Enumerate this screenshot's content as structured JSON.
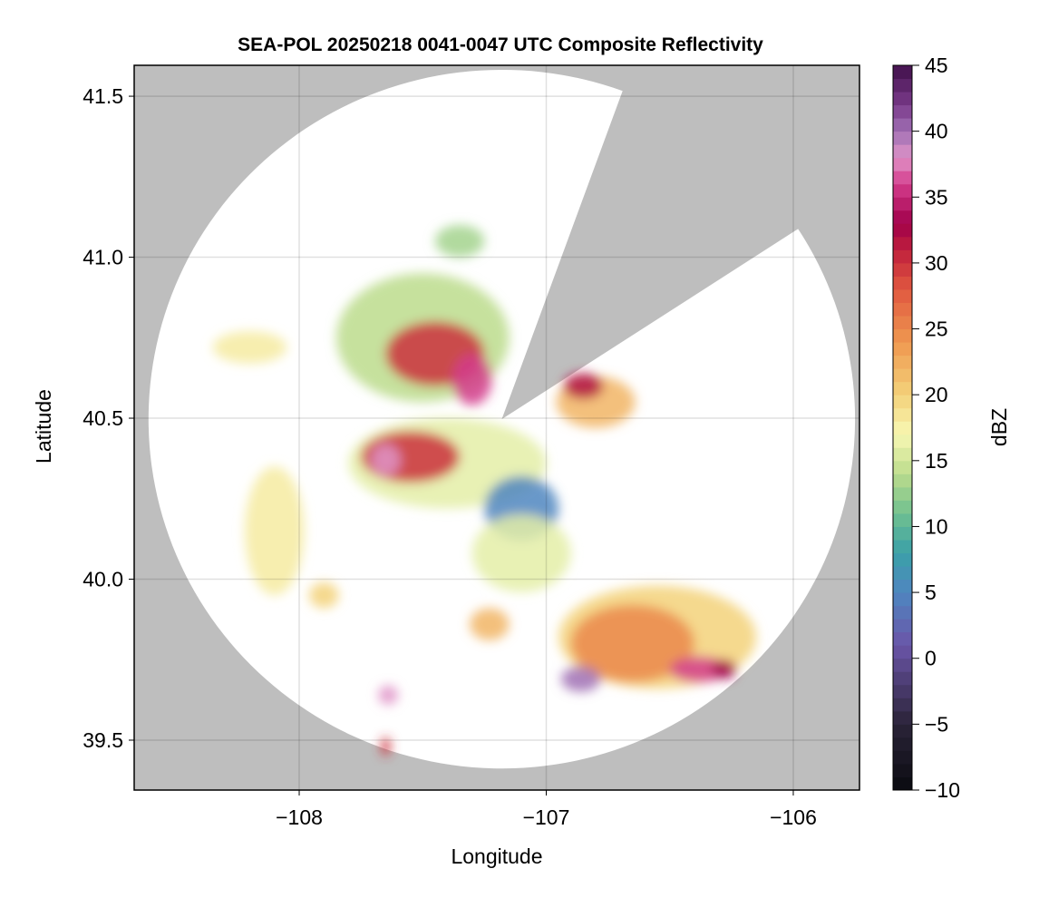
{
  "chart_data": {
    "type": "heatmap",
    "title": "SEA-POL 20250218 0041-0047 UTC Composite Reflectivity",
    "xlabel": "Longitude",
    "ylabel": "Latitude",
    "xlim": [
      -108.668,
      -105.732
    ],
    "ylim": [
      39.345,
      41.596
    ],
    "xticks": [
      -108,
      -107,
      -106
    ],
    "xtick_labels": [
      "−108",
      "−107",
      "−106"
    ],
    "yticks": [
      39.5,
      40.0,
      40.5,
      41.0,
      41.5
    ],
    "ytick_labels": [
      "39.5",
      "40.0",
      "40.5",
      "41.0",
      "41.5"
    ],
    "grid": true,
    "background_color": "#bebebe",
    "radar": {
      "lon": -107.18,
      "lat": 40.497,
      "range_deg_lon": 1.43,
      "range_deg_lat": 1.085,
      "blocked_sector_deg": [
        20,
        57
      ]
    },
    "colorbar": {
      "label": "dBZ",
      "min": -10,
      "max": 45,
      "step": 1,
      "ticks": [
        -10,
        -5,
        0,
        5,
        10,
        15,
        20,
        25,
        30,
        35,
        40,
        45
      ],
      "tick_labels": [
        "−10",
        "−5",
        "0",
        "5",
        "10",
        "15",
        "20",
        "25",
        "30",
        "35",
        "40",
        "45"
      ],
      "colormap": [
        "#0a0a10",
        "#2a2338",
        "#4b3c70",
        "#6a55a8",
        "#4f86c0",
        "#3aa0a8",
        "#70c090",
        "#bcdc8c",
        "#f8f8b4",
        "#f3d27a",
        "#ef9850",
        "#e05840",
        "#c0203c",
        "#a0004a",
        "#d43c8c",
        "#e094c8",
        "#a070b4",
        "#7a3a8a",
        "#40104a"
      ],
      "colormap_values": [
        -10,
        -5,
        -2,
        1,
        5,
        8,
        11,
        14,
        17,
        20,
        24,
        28,
        31,
        33,
        36,
        38,
        40,
        42,
        45
      ]
    },
    "echo_regions": [
      {
        "lon": -107.5,
        "lat": 40.75,
        "dlon": 0.35,
        "dlat": 0.2,
        "dbz": 14
      },
      {
        "lon": -107.45,
        "lat": 40.7,
        "dlon": 0.2,
        "dlat": 0.1,
        "dbz": 30
      },
      {
        "lon": -107.3,
        "lat": 40.62,
        "dlon": 0.08,
        "dlat": 0.08,
        "dbz": 36
      },
      {
        "lon": -107.4,
        "lat": 40.36,
        "dlon": 0.4,
        "dlat": 0.14,
        "dbz": 16
      },
      {
        "lon": -107.55,
        "lat": 40.38,
        "dlon": 0.2,
        "dlat": 0.08,
        "dbz": 30
      },
      {
        "lon": -107.65,
        "lat": 40.37,
        "dlon": 0.06,
        "dlat": 0.05,
        "dbz": 38
      },
      {
        "lon": -107.1,
        "lat": 40.22,
        "dlon": 0.15,
        "dlat": 0.1,
        "dbz": 5
      },
      {
        "lon": -107.1,
        "lat": 40.08,
        "dlon": 0.2,
        "dlat": 0.12,
        "dbz": 16
      },
      {
        "lon": -106.8,
        "lat": 40.55,
        "dlon": 0.16,
        "dlat": 0.08,
        "dbz": 22
      },
      {
        "lon": -106.85,
        "lat": 40.6,
        "dlon": 0.08,
        "dlat": 0.04,
        "dbz": 32
      },
      {
        "lon": -106.55,
        "lat": 39.82,
        "dlon": 0.4,
        "dlat": 0.16,
        "dbz": 20
      },
      {
        "lon": -106.65,
        "lat": 39.8,
        "dlon": 0.25,
        "dlat": 0.12,
        "dbz": 25
      },
      {
        "lon": -106.86,
        "lat": 39.69,
        "dlon": 0.08,
        "dlat": 0.04,
        "dbz": 40
      },
      {
        "lon": -106.38,
        "lat": 39.72,
        "dlon": 0.12,
        "dlat": 0.04,
        "dbz": 36
      },
      {
        "lon": -106.28,
        "lat": 39.72,
        "dlon": 0.05,
        "dlat": 0.03,
        "dbz": 33
      },
      {
        "lon": -108.1,
        "lat": 40.15,
        "dlon": 0.12,
        "dlat": 0.2,
        "dbz": 18
      },
      {
        "lon": -108.2,
        "lat": 40.72,
        "dlon": 0.15,
        "dlat": 0.05,
        "dbz": 18
      },
      {
        "lon": -107.23,
        "lat": 39.86,
        "dlon": 0.08,
        "dlat": 0.05,
        "dbz": 22
      },
      {
        "lon": -107.64,
        "lat": 39.64,
        "dlon": 0.04,
        "dlat": 0.03,
        "dbz": 38
      },
      {
        "lon": -107.9,
        "lat": 39.95,
        "dlon": 0.06,
        "dlat": 0.04,
        "dbz": 20
      },
      {
        "lon": -107.35,
        "lat": 41.05,
        "dlon": 0.1,
        "dlat": 0.05,
        "dbz": 13
      },
      {
        "lon": -107.65,
        "lat": 39.48,
        "dlon": 0.02,
        "dlat": 0.03,
        "dbz": 30
      }
    ]
  }
}
